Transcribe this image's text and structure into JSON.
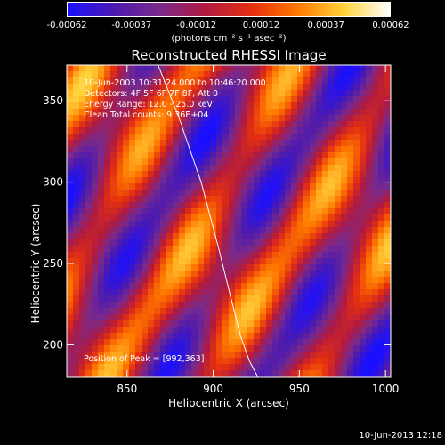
{
  "colorbar": {
    "ticks": [
      "-0.00062",
      "-0.00037",
      "-0.00012",
      "0.00012",
      "0.00037",
      "0.00062"
    ],
    "unit_label": "(photons cm⁻² s⁻¹ asec⁻²)",
    "range": [
      -0.00062,
      0.00062
    ],
    "colors": [
      "#1a10ff",
      "#4b1ab0",
      "#7a2a8a",
      "#b01a40",
      "#e53010",
      "#ff7a00",
      "#ffd23a",
      "#ffffff"
    ]
  },
  "title": "Reconstructed RHESSI Image",
  "info": {
    "line1": "10-Jun-2003 10:31:24.000 to 10:46:20.000",
    "line2": "Detectors: 4F 5F 6F 7F 8F, Att 0",
    "line3": "Energy Range: 12.0 - 25.0 keV",
    "line4": "Clean     Total counts: 9.36E+04"
  },
  "peak_label": "Position of Peak = [992,363]",
  "footer": {
    "timestamp": "10-Jun-2013 12:18"
  },
  "chart_data": {
    "type": "heatmap",
    "title": "Reconstructed RHESSI Image",
    "xlabel": "Heliocentric X (arcsec)",
    "ylabel": "Heliocentric Y (arcsec)",
    "xlim": [
      815,
      1003
    ],
    "ylim": [
      180,
      372
    ],
    "x_ticks": [
      850,
      900,
      950,
      1000
    ],
    "y_ticks": [
      200,
      250,
      300,
      350
    ],
    "peak": [
      992,
      363
    ],
    "limb_curve": {
      "x": [
        868,
        880,
        893,
        903,
        910,
        916,
        921,
        926
      ],
      "y": [
        372,
        340,
        300,
        260,
        230,
        205,
        190,
        180
      ]
    }
  }
}
